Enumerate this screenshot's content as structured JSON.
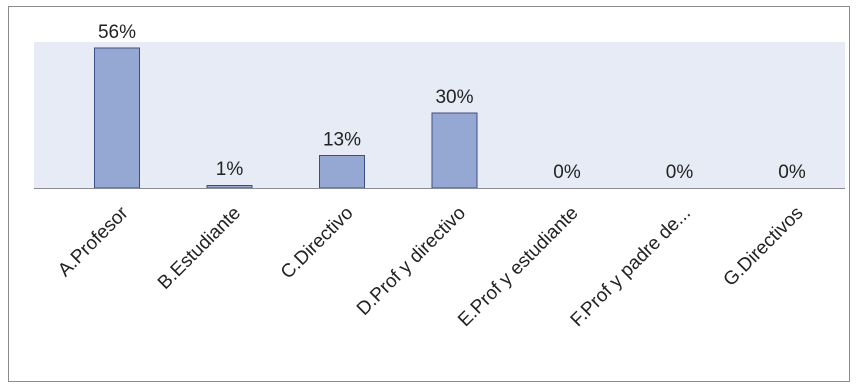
{
  "chart_data": {
    "type": "bar",
    "categories": [
      "A.Profesor",
      "B.Estudiante",
      "C.Directivo",
      "D.Prof y directivo",
      "E.Prof y estudiante",
      "F.Prof y padre de...",
      "G.Directivos"
    ],
    "values": [
      56,
      1,
      13,
      30,
      0,
      0,
      0
    ],
    "data_labels": [
      "56%",
      "1%",
      "13%",
      "30%",
      "0%",
      "0%",
      "0%"
    ],
    "unit": "%",
    "ylim": [
      0,
      56
    ],
    "grid": false,
    "legend": "none",
    "colors": {
      "bar_fill": "#95a8d3",
      "bar_stroke": "#3a4f8a",
      "plot_background": "#e6ebf5",
      "axis_line": "#8c8c8c"
    }
  }
}
